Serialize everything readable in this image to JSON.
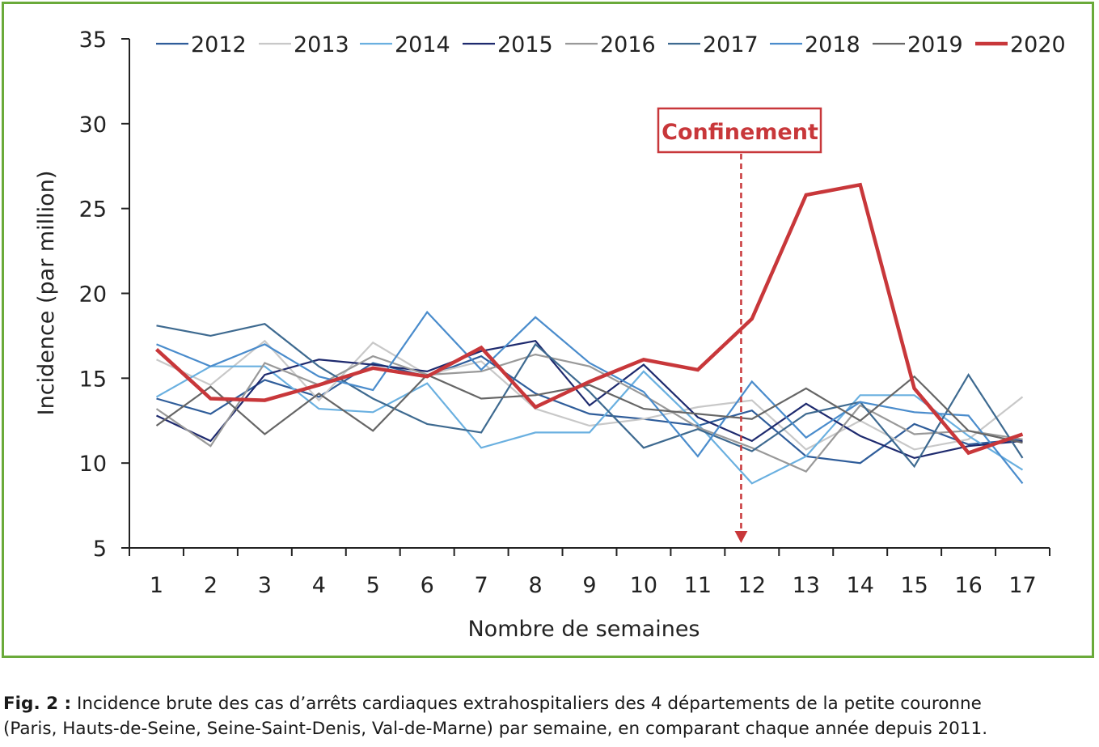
{
  "chart_data": {
    "type": "line",
    "xlabel": "Nombre de semaines",
    "ylabel": "Incidence (par million)",
    "ylim": [
      5,
      35
    ],
    "yticks": [
      5,
      10,
      15,
      20,
      25,
      30,
      35
    ],
    "x": [
      1,
      2,
      3,
      4,
      5,
      6,
      7,
      8,
      9,
      10,
      11,
      12,
      13,
      14,
      15,
      16,
      17
    ],
    "legend_position": "top",
    "series": [
      {
        "name": "2012",
        "color": "#2f5d9a",
        "width": 2.2,
        "values": [
          13.8,
          12.9,
          14.9,
          13.9,
          15.9,
          15.1,
          16.3,
          14.1,
          12.9,
          12.6,
          12.2,
          13.1,
          10.4,
          10.0,
          12.3,
          11.1,
          11.4
        ]
      },
      {
        "name": "2013",
        "color": "#c8c8c8",
        "width": 2.2,
        "values": [
          16.1,
          14.6,
          17.2,
          13.7,
          17.1,
          15.2,
          16.0,
          13.2,
          12.2,
          12.6,
          13.3,
          13.7,
          10.8,
          12.5,
          10.8,
          11.4,
          13.9
        ]
      },
      {
        "name": "2014",
        "color": "#6ab0e0",
        "width": 2.2,
        "values": [
          13.9,
          15.7,
          15.7,
          13.2,
          13.0,
          14.7,
          10.9,
          11.8,
          11.8,
          15.4,
          12.3,
          8.8,
          10.4,
          14.0,
          14.0,
          11.6,
          9.6
        ]
      },
      {
        "name": "2015",
        "color": "#1e2a6e",
        "width": 2.2,
        "values": [
          12.8,
          11.3,
          15.2,
          16.1,
          15.8,
          15.4,
          16.6,
          17.2,
          13.4,
          15.8,
          12.7,
          11.3,
          13.5,
          11.6,
          10.3,
          11.0,
          11.3
        ]
      },
      {
        "name": "2016",
        "color": "#999999",
        "width": 2.2,
        "values": [
          13.2,
          11.0,
          15.9,
          14.6,
          16.3,
          15.2,
          15.4,
          16.4,
          15.7,
          14.0,
          12.1,
          10.9,
          9.5,
          13.4,
          11.7,
          11.9,
          11.4
        ]
      },
      {
        "name": "2017",
        "color": "#3e6a90",
        "width": 2.2,
        "values": [
          18.1,
          17.5,
          18.2,
          15.7,
          13.8,
          12.3,
          11.8,
          17.0,
          14.2,
          10.9,
          12.0,
          10.7,
          12.9,
          13.6,
          9.8,
          15.2,
          10.3
        ]
      },
      {
        "name": "2018",
        "color": "#4a8ccc",
        "width": 2.2,
        "values": [
          17.0,
          15.7,
          17.0,
          15.1,
          14.3,
          18.9,
          15.5,
          18.6,
          15.9,
          14.2,
          10.4,
          14.8,
          11.5,
          13.6,
          13.0,
          12.8,
          8.8
        ]
      },
      {
        "name": "2019",
        "color": "#666666",
        "width": 2.2,
        "values": [
          12.2,
          14.5,
          11.7,
          14.1,
          11.9,
          15.2,
          13.8,
          14.0,
          14.6,
          13.2,
          12.9,
          12.6,
          14.4,
          12.5,
          15.1,
          11.9,
          11.2
        ]
      },
      {
        "name": "2020",
        "color": "#c8373a",
        "width": 4.5,
        "values": [
          16.7,
          13.8,
          13.7,
          14.6,
          15.6,
          15.1,
          16.8,
          13.3,
          14.8,
          16.1,
          15.5,
          18.5,
          25.8,
          26.4,
          14.4,
          10.6,
          11.7
        ]
      }
    ],
    "annotation": {
      "label": "Confinement",
      "x": 11.8,
      "color": "#c8373a"
    }
  },
  "caption": {
    "label": "Fig. 2 :",
    "line1": " Incidence brute des cas d’arrêts cardiaques extrahospitaliers des 4 départements de la petite couronne",
    "line2": "(Paris, Hauts-de-Seine, Seine-Saint-Denis, Val-de-Marne) par semaine, en comparant chaque année depuis 2011."
  }
}
